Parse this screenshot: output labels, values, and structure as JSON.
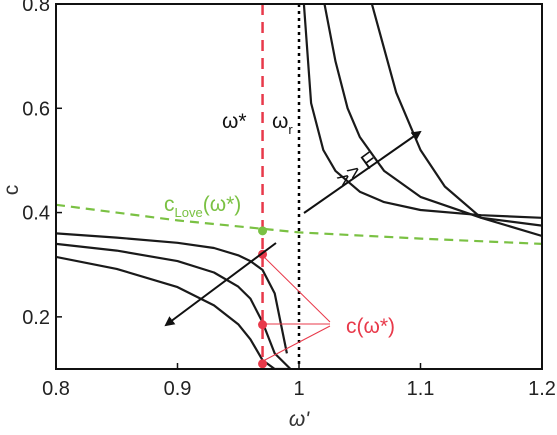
{
  "chart_data": {
    "type": "line",
    "title": "",
    "xlabel": "ω'",
    "ylabel": "c",
    "xlim": [
      0.8,
      1.2
    ],
    "ylim": [
      0.1,
      0.8
    ],
    "x_ticks": [
      "0.8",
      "0.9",
      "1",
      "1.1",
      "1.2"
    ],
    "y_ticks": [
      "0.2",
      "0.4",
      "0.6",
      "0.8"
    ],
    "grid": false,
    "markers": [
      {
        "name": "ω*",
        "x": 0.97,
        "style": "dashed",
        "color": "#e8394a"
      },
      {
        "name": "ωr",
        "x": 1.0,
        "style": "dotted",
        "color": "#000000"
      }
    ],
    "series": [
      {
        "name": "c_Love(ω*)",
        "color": "#7ac143",
        "style": "dashed",
        "x": [
          0.8,
          0.9,
          1.0,
          1.1,
          1.2
        ],
        "y": [
          0.415,
          0.385,
          0.362,
          0.35,
          0.34
        ]
      },
      {
        "color": "#1a1a1a",
        "x": [
          0.8,
          0.85,
          0.9,
          0.93,
          0.95,
          0.96,
          0.97,
          0.98,
          0.99
        ],
        "y": [
          0.36,
          0.352,
          0.342,
          0.332,
          0.318,
          0.307,
          0.29,
          0.245,
          0.13
        ]
      },
      {
        "color": "#1a1a1a",
        "x": [
          0.8,
          0.85,
          0.9,
          0.93,
          0.95,
          0.96,
          0.97,
          0.98,
          0.993
        ],
        "y": [
          0.34,
          0.327,
          0.307,
          0.285,
          0.258,
          0.235,
          0.19,
          0.13,
          0.1
        ]
      },
      {
        "color": "#1a1a1a",
        "x": [
          0.8,
          0.85,
          0.9,
          0.93,
          0.95,
          0.96,
          0.97,
          0.98,
          0.99
        ],
        "y": [
          0.315,
          0.292,
          0.257,
          0.222,
          0.186,
          0.157,
          0.117,
          0.1,
          0.1
        ]
      },
      {
        "color": "#1a1a1a",
        "x": [
          1.004,
          1.01,
          1.02,
          1.03,
          1.05,
          1.07,
          1.1,
          1.15,
          1.2
        ],
        "y": [
          0.8,
          0.61,
          0.52,
          0.48,
          0.44,
          0.42,
          0.405,
          0.395,
          0.39
        ]
      },
      {
        "color": "#1a1a1a",
        "x": [
          1.021,
          1.03,
          1.04,
          1.05,
          1.07,
          1.1,
          1.15,
          1.2
        ],
        "y": [
          0.8,
          0.69,
          0.6,
          0.545,
          0.48,
          0.43,
          0.39,
          0.375
        ]
      },
      {
        "color": "#1a1a1a",
        "x": [
          1.06,
          1.08,
          1.1,
          1.12,
          1.15,
          1.2
        ],
        "y": [
          0.8,
          0.63,
          0.52,
          0.45,
          0.39,
          0.355
        ]
      }
    ],
    "points": [
      {
        "x": 0.97,
        "y": 0.365,
        "color": "#7ac143"
      },
      {
        "x": 0.97,
        "y": 0.32,
        "color": "#e8394a"
      },
      {
        "x": 0.97,
        "y": 0.185,
        "color": "#e8394a"
      },
      {
        "x": 0.97,
        "y": 0.11,
        "color": "#e8394a"
      }
    ],
    "annotations": {
      "omega_star": "ω*",
      "omega_r_main": "ω",
      "omega_r_sub": "r",
      "love_main": "c",
      "love_sub": "Love",
      "love_tail": "(ω*)",
      "arrow_label": ">> F",
      "c_omega_star": "c(ω*)"
    }
  }
}
